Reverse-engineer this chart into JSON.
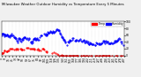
{
  "title": "Milwaukee Weather Outdoor Humidity vs Temperature Every 5 Minutes",
  "title_fontsize": 2.8,
  "bg_color": "#f0f0f0",
  "plot_bg_color": "#ffffff",
  "grid_color": "#cccccc",
  "blue_color": "#0000ff",
  "red_color": "#ff0000",
  "legend_blue_label": "Humidity",
  "legend_red_label": "Temp",
  "ylim": [
    0,
    100
  ],
  "tick_fontsize": 2.2,
  "marker_size": 1.0,
  "n_points": 288,
  "seed_blue": 7,
  "seed_red": 13
}
